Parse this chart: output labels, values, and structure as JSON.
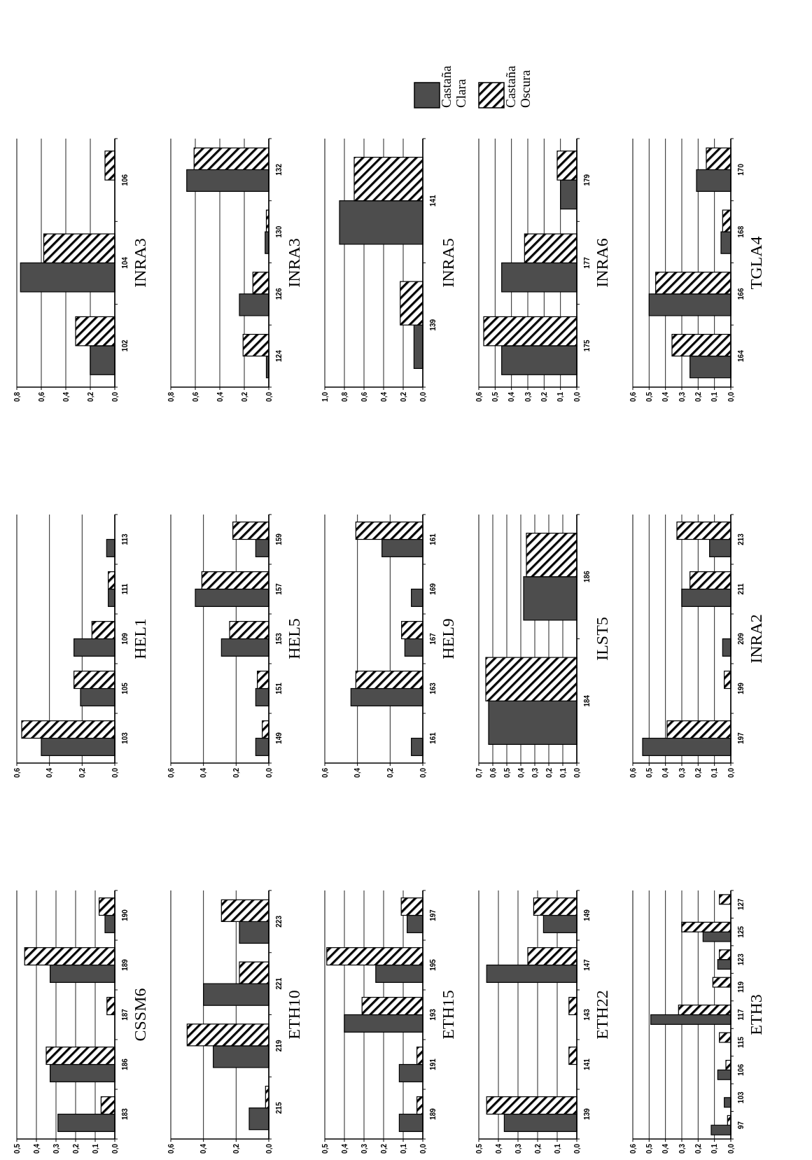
{
  "chart_data": [
    {
      "type": "bar",
      "orientation": "horizontal",
      "title": "INRA3",
      "categories": [
        "106",
        "104",
        "102"
      ],
      "series": [
        {
          "color": "#4d4d4d",
          "values": [
            0,
            0.77,
            0.2
          ]
        },
        {
          "color": "#000000",
          "values": [
            0.08,
            0.58,
            0.32
          ]
        }
      ],
      "xlim": [
        0.8,
        0
      ],
      "xticks": [
        {
          "value": 0.8,
          "label": "0,8"
        },
        {
          "value": 0.6,
          "label": "0,6"
        },
        {
          "value": 0.4,
          "label": "0,4"
        },
        {
          "value": 0.2,
          "label": "0,2"
        },
        {
          "value": 0,
          "label": "0,0"
        }
      ],
      "grid": "x"
    },
    {
      "type": "bar",
      "orientation": "horizontal",
      "title": "INRA3",
      "categories": [
        "132",
        "130",
        "126",
        "124"
      ],
      "series": [
        {
          "color": "#4d4d4d",
          "values": [
            0.67,
            0.03,
            0.24,
            0.02
          ]
        },
        {
          "color": "#000000",
          "values": [
            0.61,
            0.02,
            0.13,
            0.21
          ]
        }
      ],
      "xlim": [
        0.8,
        0
      ],
      "xticks": [
        {
          "value": 0.8,
          "label": "0,8"
        },
        {
          "value": 0.6,
          "label": "0,6"
        },
        {
          "value": 0.4,
          "label": "0,4"
        },
        {
          "value": 0.2,
          "label": "0,2"
        },
        {
          "value": 0,
          "label": "0,0"
        }
      ],
      "grid": "x"
    },
    {
      "type": "bar",
      "orientation": "horizontal",
      "title": "INRA5",
      "categories": [
        "141",
        "139"
      ],
      "series": [
        {
          "name": "Castaña Clara",
          "color": "#4d4d4d",
          "values": [
            0.85,
            0.09
          ]
        },
        {
          "name": "Castaña Oscura",
          "color": "#000000",
          "values": [
            0.7,
            0.23
          ]
        }
      ],
      "xlim": [
        1,
        0
      ],
      "xticks": [
        {
          "value": 1,
          "label": "1,0"
        },
        {
          "value": 0.8,
          "label": "0,8"
        },
        {
          "value": 0.6,
          "label": "0,6"
        },
        {
          "value": 0.4,
          "label": "0,4"
        },
        {
          "value": 0.2,
          "label": "0,2"
        },
        {
          "value": 0,
          "label": "0,0"
        }
      ],
      "grid": "x",
      "legend": "top"
    },
    {
      "type": "bar",
      "orientation": "horizontal",
      "title": "INRA6",
      "categories": [
        "179",
        "177",
        "175"
      ],
      "series": [
        {
          "color": "#4d4d4d",
          "values": [
            0.1,
            0.46,
            0.46
          ]
        },
        {
          "color": "#000000",
          "values": [
            0.12,
            0.32,
            0.57
          ]
        }
      ],
      "xlim": [
        0.6,
        0
      ],
      "xticks": [
        {
          "value": 0.6,
          "label": "0,6"
        },
        {
          "value": 0.5,
          "label": "0,5"
        },
        {
          "value": 0.4,
          "label": "0,4"
        },
        {
          "value": 0.3,
          "label": "0,3"
        },
        {
          "value": 0.2,
          "label": "0,2"
        },
        {
          "value": 0.1,
          "label": "0,1"
        },
        {
          "value": 0,
          "label": "0,0"
        }
      ],
      "grid": "x"
    },
    {
      "type": "bar",
      "orientation": "horizontal",
      "title": "TGLA4",
      "categories": [
        "170",
        "168",
        "166",
        "164"
      ],
      "series": [
        {
          "color": "#4d4d4d",
          "values": [
            0.21,
            0.06,
            0.5,
            0.25
          ]
        },
        {
          "color": "#000000",
          "values": [
            0.15,
            0.05,
            0.46,
            0.36
          ]
        }
      ],
      "xlim": [
        0.6,
        0
      ],
      "xticks": [
        {
          "value": 0.6,
          "label": "0,6"
        },
        {
          "value": 0.5,
          "label": "0,5"
        },
        {
          "value": 0.4,
          "label": "0,4"
        },
        {
          "value": 0.3,
          "label": "0,3"
        },
        {
          "value": 0.2,
          "label": "0,2"
        },
        {
          "value": 0.1,
          "label": "0,1"
        },
        {
          "value": 0,
          "label": "0,0"
        }
      ],
      "grid": "x"
    },
    {
      "type": "bar",
      "orientation": "horizontal",
      "title": "HEL1",
      "categories": [
        "113",
        "111",
        "109",
        "105",
        "103"
      ],
      "series": [
        {
          "color": "#4d4d4d",
          "values": [
            0.05,
            0.04,
            0.25,
            0.21,
            0.45
          ]
        },
        {
          "color": "#000000",
          "values": [
            0,
            0.04,
            0.14,
            0.25,
            0.57
          ]
        }
      ],
      "xlim": [
        0.6,
        0
      ],
      "xticks": [
        {
          "value": 0.6,
          "label": "0,6"
        },
        {
          "value": 0.4,
          "label": "0,4"
        },
        {
          "value": 0.2,
          "label": "0,2"
        },
        {
          "value": 0,
          "label": "0,0"
        }
      ],
      "grid": "x"
    },
    {
      "type": "bar",
      "orientation": "horizontal",
      "title": "HEL5",
      "categories": [
        "159",
        "157",
        "153",
        "151",
        "149"
      ],
      "series": [
        {
          "color": "#4d4d4d",
          "values": [
            0.08,
            0.45,
            0.29,
            0.08,
            0.08
          ]
        },
        {
          "color": "#000000",
          "values": [
            0.22,
            0.41,
            0.24,
            0.07,
            0.04
          ]
        }
      ],
      "xlim": [
        0.6,
        0
      ],
      "xticks": [
        {
          "value": 0.6,
          "label": "0,6"
        },
        {
          "value": 0.4,
          "label": "0,4"
        },
        {
          "value": 0.2,
          "label": "0,2"
        },
        {
          "value": 0,
          "label": "0,0"
        }
      ],
      "grid": "x"
    },
    {
      "type": "bar",
      "orientation": "horizontal",
      "title": "HEL9",
      "categories": [
        "161",
        "169",
        "167",
        "163",
        "161"
      ],
      "series": [
        {
          "color": "#4d4d4d",
          "values": [
            0.25,
            0.07,
            0.11,
            0.44,
            0.07
          ]
        },
        {
          "color": "#000000",
          "values": [
            0.41,
            0,
            0.13,
            0.41,
            0
          ]
        }
      ],
      "xlim": [
        0.6,
        0
      ],
      "xticks": [
        {
          "value": 0.6,
          "label": "0,6"
        },
        {
          "value": 0.4,
          "label": "0,4"
        },
        {
          "value": 0.2,
          "label": "0,2"
        },
        {
          "value": 0,
          "label": "0,0"
        }
      ],
      "grid": "x"
    },
    {
      "type": "bar",
      "orientation": "horizontal",
      "title": "ILST5",
      "categories": [
        "186",
        "184"
      ],
      "series": [
        {
          "color": "#4d4d4d",
          "values": [
            0.38,
            0.63
          ]
        },
        {
          "color": "#000000",
          "values": [
            0.36,
            0.65
          ]
        }
      ],
      "xlim": [
        0.7,
        0
      ],
      "xticks": [
        {
          "value": 0.7,
          "label": "0,7"
        },
        {
          "value": 0.6,
          "label": "0,6"
        },
        {
          "value": 0.5,
          "label": "0,5"
        },
        {
          "value": 0.4,
          "label": "0,4"
        },
        {
          "value": 0.3,
          "label": "0,3"
        },
        {
          "value": 0.2,
          "label": "0,2"
        },
        {
          "value": 0.1,
          "label": "0,1"
        },
        {
          "value": 0,
          "label": "0,0"
        }
      ],
      "grid": "x"
    },
    {
      "type": "bar",
      "orientation": "horizontal",
      "title": "INRA2",
      "categories": [
        "213",
        "211",
        "209",
        "199",
        "197"
      ],
      "series": [
        {
          "color": "#4d4d4d",
          "values": [
            0.13,
            0.3,
            0.05,
            0,
            0.54
          ]
        },
        {
          "color": "#000000",
          "values": [
            0.33,
            0.25,
            0,
            0.04,
            0.39
          ]
        }
      ],
      "xlim": [
        0.6,
        0
      ],
      "xticks": [
        {
          "value": 0.6,
          "label": "0,6"
        },
        {
          "value": 0.5,
          "label": "0,5"
        },
        {
          "value": 0.4,
          "label": "0,4"
        },
        {
          "value": 0.3,
          "label": "0,3"
        },
        {
          "value": 0.2,
          "label": "0,2"
        },
        {
          "value": 0.1,
          "label": "0,1"
        },
        {
          "value": 0,
          "label": "0,0"
        }
      ],
      "grid": "x"
    },
    {
      "type": "bar",
      "orientation": "horizontal",
      "title": "CSSM6",
      "categories": [
        "190",
        "189",
        "187",
        "186",
        "183"
      ],
      "series": [
        {
          "color": "#4d4d4d",
          "values": [
            0.05,
            0.33,
            0,
            0.33,
            0.29
          ]
        },
        {
          "color": "#000000",
          "values": [
            0.08,
            0.46,
            0.04,
            0.35,
            0.07
          ]
        }
      ],
      "xlim": [
        0.5,
        0
      ],
      "xticks": [
        {
          "value": 0.5,
          "label": "0,5"
        },
        {
          "value": 0.4,
          "label": "0,4"
        },
        {
          "value": 0.3,
          "label": "0,3"
        },
        {
          "value": 0.2,
          "label": "0,2"
        },
        {
          "value": 0.1,
          "label": "0,1"
        },
        {
          "value": 0,
          "label": "0,0"
        }
      ],
      "grid": "x"
    },
    {
      "type": "bar",
      "orientation": "horizontal",
      "title": "ETH10",
      "categories": [
        "223",
        "221",
        "219",
        "215"
      ],
      "series": [
        {
          "color": "#4d4d4d",
          "values": [
            0.18,
            0.4,
            0.34,
            0.12
          ]
        },
        {
          "color": "#000000",
          "values": [
            0.29,
            0.18,
            0.5,
            0.02
          ]
        }
      ],
      "xlim": [
        0.6,
        0
      ],
      "xticks": [
        {
          "value": 0.6,
          "label": "0,6"
        },
        {
          "value": 0.4,
          "label": "0,4"
        },
        {
          "value": 0.2,
          "label": "0,2"
        },
        {
          "value": 0,
          "label": "0,0"
        }
      ],
      "grid": "x"
    },
    {
      "type": "bar",
      "orientation": "horizontal",
      "title": "ETH15",
      "categories": [
        "197",
        "195",
        "193",
        "191",
        "189"
      ],
      "series": [
        {
          "color": "#4d4d4d",
          "values": [
            0.08,
            0.24,
            0.4,
            0.12,
            0.12
          ]
        },
        {
          "color": "#000000",
          "values": [
            0.11,
            0.49,
            0.31,
            0.03,
            0.03
          ]
        }
      ],
      "xlim": [
        0.5,
        0
      ],
      "xticks": [
        {
          "value": 0.5,
          "label": "0,5"
        },
        {
          "value": 0.4,
          "label": "0,4"
        },
        {
          "value": 0.3,
          "label": "0,3"
        },
        {
          "value": 0.2,
          "label": "0,2"
        },
        {
          "value": 0.1,
          "label": "0,1"
        },
        {
          "value": 0,
          "label": "0,0"
        }
      ],
      "grid": "x"
    },
    {
      "type": "bar",
      "orientation": "horizontal",
      "title": "ETH22",
      "categories": [
        "149",
        "147",
        "143",
        "141",
        "139"
      ],
      "series": [
        {
          "color": "#4d4d4d",
          "values": [
            0.17,
            0.46,
            0,
            0,
            0.37
          ]
        },
        {
          "color": "#000000",
          "values": [
            0.22,
            0.25,
            0.04,
            0.04,
            0.46
          ]
        }
      ],
      "xlim": [
        0.5,
        0
      ],
      "xticks": [
        {
          "value": 0.5,
          "label": "0,5"
        },
        {
          "value": 0.4,
          "label": "0,4"
        },
        {
          "value": 0.3,
          "label": "0,3"
        },
        {
          "value": 0.2,
          "label": "0,2"
        },
        {
          "value": 0.1,
          "label": "0,1"
        },
        {
          "value": 0,
          "label": "0,0"
        }
      ],
      "grid": "x"
    },
    {
      "type": "bar",
      "orientation": "horizontal",
      "title": "ETH3",
      "categories": [
        "127",
        "125",
        "123",
        "119",
        "117",
        "115",
        "106",
        "103",
        "97"
      ],
      "series": [
        {
          "color": "#4d4d4d",
          "values": [
            0,
            0.17,
            0.08,
            0,
            0.49,
            0,
            0.08,
            0.04,
            0.12
          ]
        },
        {
          "color": "#000000",
          "values": [
            0.07,
            0.3,
            0.07,
            0.11,
            0.32,
            0.07,
            0.03,
            0,
            0.02
          ]
        }
      ],
      "xlim": [
        0.6,
        0
      ],
      "xticks": [
        {
          "value": 0.6,
          "label": "0,6"
        },
        {
          "value": 0.5,
          "label": "0,5"
        },
        {
          "value": 0.4,
          "label": "0,4"
        },
        {
          "value": 0.3,
          "label": "0,3"
        },
        {
          "value": 0.2,
          "label": "0,2"
        },
        {
          "value": 0.1,
          "label": "0,1"
        },
        {
          "value": 0,
          "label": "0,0"
        }
      ],
      "grid": "x"
    }
  ]
}
